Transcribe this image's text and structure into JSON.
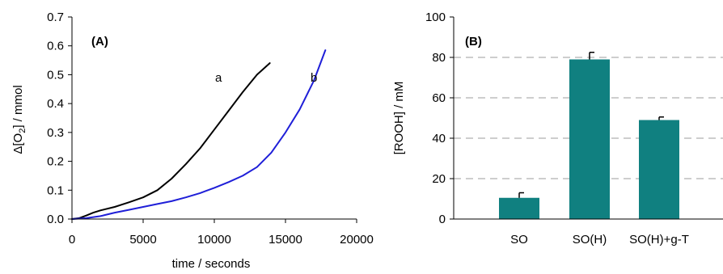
{
  "chart_data": [
    {
      "type": "line",
      "panel_label": "(A)",
      "xlabel": "time / seconds",
      "ylabel_parts": [
        "Δ[O",
        "2",
        "] / mmol"
      ],
      "xlim": [
        0,
        20000
      ],
      "ylim": [
        0,
        0.7
      ],
      "x_ticks": [
        "0",
        "5000",
        "10000",
        "15000",
        "20000"
      ],
      "y_ticks": [
        "0.0",
        "0.1",
        "0.2",
        "0.3",
        "0.4",
        "0.5",
        "0.6",
        "0.7"
      ],
      "grid": false,
      "series": [
        {
          "name": "a",
          "color": "#000000",
          "x": [
            0,
            500,
            1000,
            1500,
            2000,
            3000,
            4000,
            5000,
            6000,
            7000,
            8000,
            9000,
            10000,
            11000,
            12000,
            13000,
            13900
          ],
          "y": [
            0.0,
            0.003,
            0.012,
            0.022,
            0.03,
            0.042,
            0.058,
            0.075,
            0.1,
            0.14,
            0.19,
            0.245,
            0.31,
            0.375,
            0.44,
            0.5,
            0.54
          ]
        },
        {
          "name": "b",
          "color": "#1f1fd8",
          "x": [
            0,
            1000,
            2000,
            3000,
            4000,
            5000,
            6000,
            7000,
            8000,
            9000,
            10000,
            11000,
            12000,
            13000,
            14000,
            15000,
            16000,
            17000,
            17800
          ],
          "y": [
            0.0,
            0.003,
            0.01,
            0.022,
            0.032,
            0.042,
            0.052,
            0.062,
            0.075,
            0.09,
            0.108,
            0.128,
            0.15,
            0.18,
            0.23,
            0.3,
            0.38,
            0.48,
            0.585
          ]
        }
      ]
    },
    {
      "type": "bar",
      "panel_label": "(B)",
      "ylabel": "[ROOH] / mM",
      "ylim": [
        0,
        100
      ],
      "y_ticks": [
        "0",
        "20",
        "40",
        "60",
        "80",
        "100"
      ],
      "grid": true,
      "bar_color": "#108080",
      "categories": [
        "SO",
        "SO(H)",
        "SO(H)+g-T"
      ],
      "values": [
        10.5,
        79,
        49
      ],
      "errors": [
        2.5,
        3.5,
        1.5
      ]
    }
  ]
}
